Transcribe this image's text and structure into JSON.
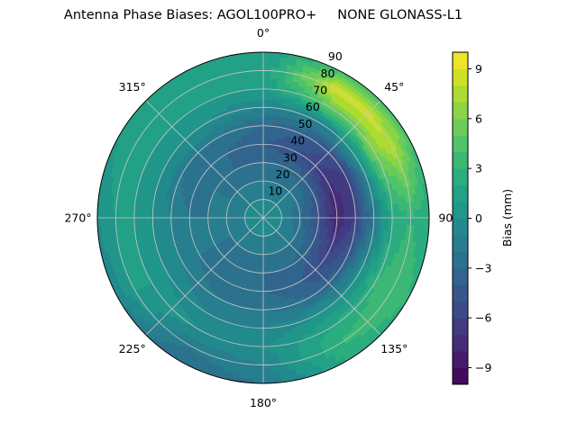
{
  "chart_data": {
    "type": "heatmap",
    "subtype": "polar-contour",
    "title": "Antenna Phase Biases: AGOL100PRO+     NONE GLONASS-L1",
    "theta_direction": "clockwise",
    "theta_zero": "top",
    "theta_tick_labels": [
      "0°",
      "45°",
      "90°",
      "135°",
      "180°",
      "225°",
      "270°",
      "315°"
    ],
    "r_tick_labels": [
      "10",
      "20",
      "30",
      "40",
      "50",
      "60",
      "70",
      "80",
      "90"
    ],
    "r_range": [
      0,
      90
    ],
    "grid": true,
    "colorbar": {
      "label": "Bias (mm)",
      "range": [
        -10,
        10
      ],
      "levels_step": 1,
      "tick_labels": [
        "−9",
        "−6",
        "−3",
        "0",
        "3",
        "6",
        "9"
      ],
      "tick_values": [
        -9,
        -6,
        -3,
        0,
        3,
        6,
        9
      ],
      "colormap": "viridis"
    },
    "azimuths": [
      0,
      30,
      60,
      90,
      120,
      150,
      180,
      210,
      240,
      270,
      300,
      330
    ],
    "zeniths": [
      0,
      10,
      20,
      30,
      40,
      50,
      60,
      70,
      80,
      90
    ],
    "values": [
      [
        0,
        -1,
        -2,
        -3,
        -4,
        -3,
        -1,
        1,
        1,
        1
      ],
      [
        0,
        -1,
        -2,
        -3,
        -5,
        -4,
        -1,
        5,
        9,
        4
      ],
      [
        0,
        -1,
        -2,
        -4,
        -7,
        -6,
        0,
        6,
        8,
        4
      ],
      [
        0,
        -1,
        -3,
        -5,
        -8,
        -6,
        -2,
        2,
        3,
        2
      ],
      [
        0,
        -1,
        -2,
        -4,
        -6,
        -4,
        0,
        3,
        4,
        3
      ],
      [
        0,
        -1,
        -2,
        -3,
        -4,
        -3,
        0,
        2,
        3,
        2
      ],
      [
        0,
        -1,
        -2,
        -3,
        -3,
        -2,
        -1,
        0,
        -1,
        -2
      ],
      [
        0,
        -1,
        -2,
        -3,
        -3,
        -2,
        -1,
        0,
        -2,
        -3
      ],
      [
        0,
        -1,
        -2,
        -2,
        -2,
        -1,
        0,
        1,
        1,
        -1
      ],
      [
        0,
        -1,
        -1,
        -2,
        -2,
        -1,
        0,
        1,
        1,
        0
      ],
      [
        0,
        -1,
        -2,
        -2,
        -3,
        -2,
        0,
        1,
        2,
        1
      ],
      [
        0,
        -1,
        -2,
        -3,
        -3,
        -2,
        0,
        1,
        2,
        1
      ]
    ]
  }
}
